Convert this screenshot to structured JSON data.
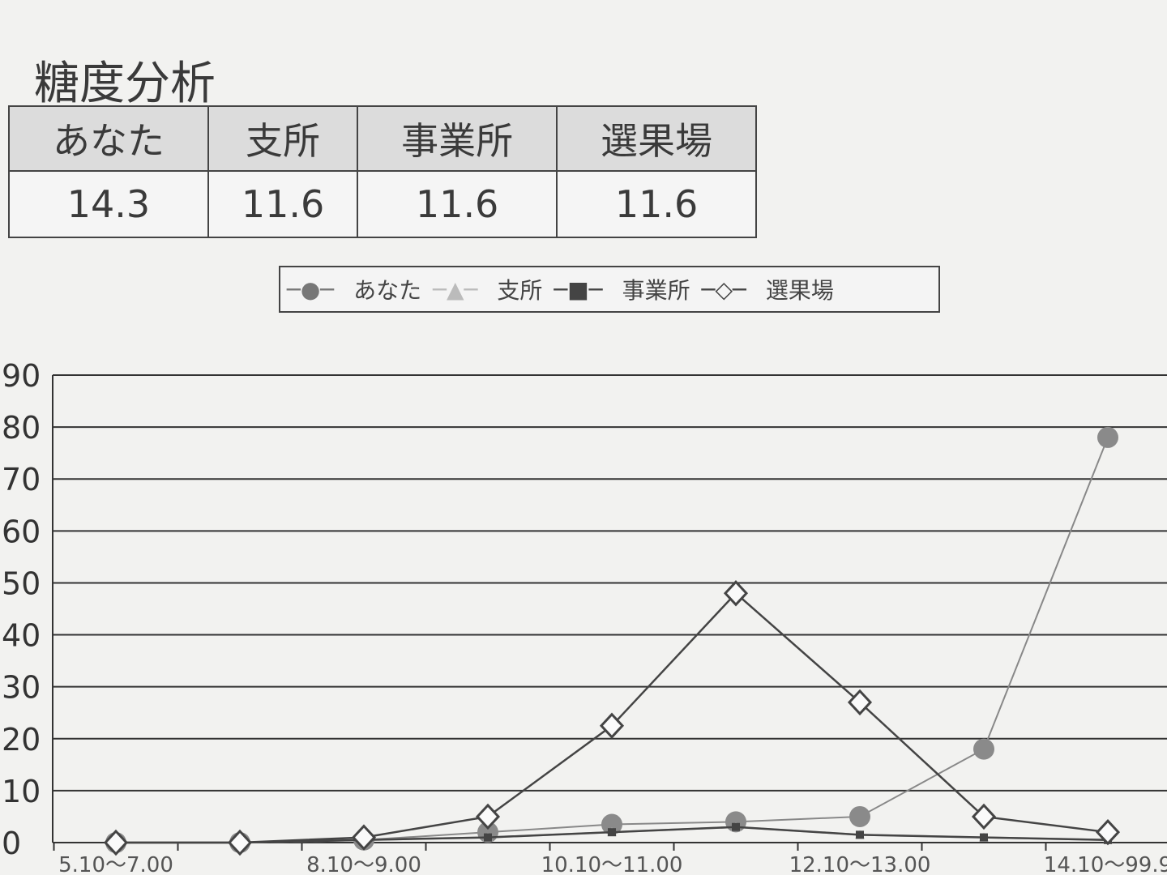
{
  "title": "糖度分析",
  "summary_table": {
    "headers": [
      "あなた",
      "支所",
      "事業所",
      "選果場"
    ],
    "values": [
      "14.3",
      "11.6",
      "11.6",
      "11.6"
    ]
  },
  "chart_data": {
    "type": "line",
    "title": "",
    "xlabel": "",
    "ylabel": "",
    "categories": [
      "5.10～7.00",
      "",
      "8.10～9.00",
      "",
      "10.10～11.00",
      "",
      "12.10～13.00",
      "",
      "14.10～99.9"
    ],
    "ylim": [
      0,
      90
    ],
    "yticks": [
      0,
      10,
      20,
      30,
      40,
      50,
      60,
      70,
      80,
      90
    ],
    "grid": true,
    "legend_position": "top",
    "series": [
      {
        "name": "あなた",
        "marker": "circle",
        "color": "#888888",
        "values": [
          0,
          0,
          0.5,
          2,
          3.5,
          4,
          5,
          18,
          78
        ]
      },
      {
        "name": "支所",
        "marker": "triangle",
        "color": "#bbbbbb",
        "values": [
          0,
          0,
          0.5,
          1,
          2,
          3,
          1.5,
          1,
          0.5
        ]
      },
      {
        "name": "事業所",
        "marker": "square",
        "color": "#444444",
        "values": [
          0,
          0,
          0.5,
          1,
          2,
          3,
          1.5,
          1,
          0.5
        ]
      },
      {
        "name": "選果場",
        "marker": "diamond",
        "color": "#444444",
        "values": [
          0,
          0,
          1,
          5,
          22.5,
          48,
          27,
          5,
          2
        ]
      }
    ]
  }
}
